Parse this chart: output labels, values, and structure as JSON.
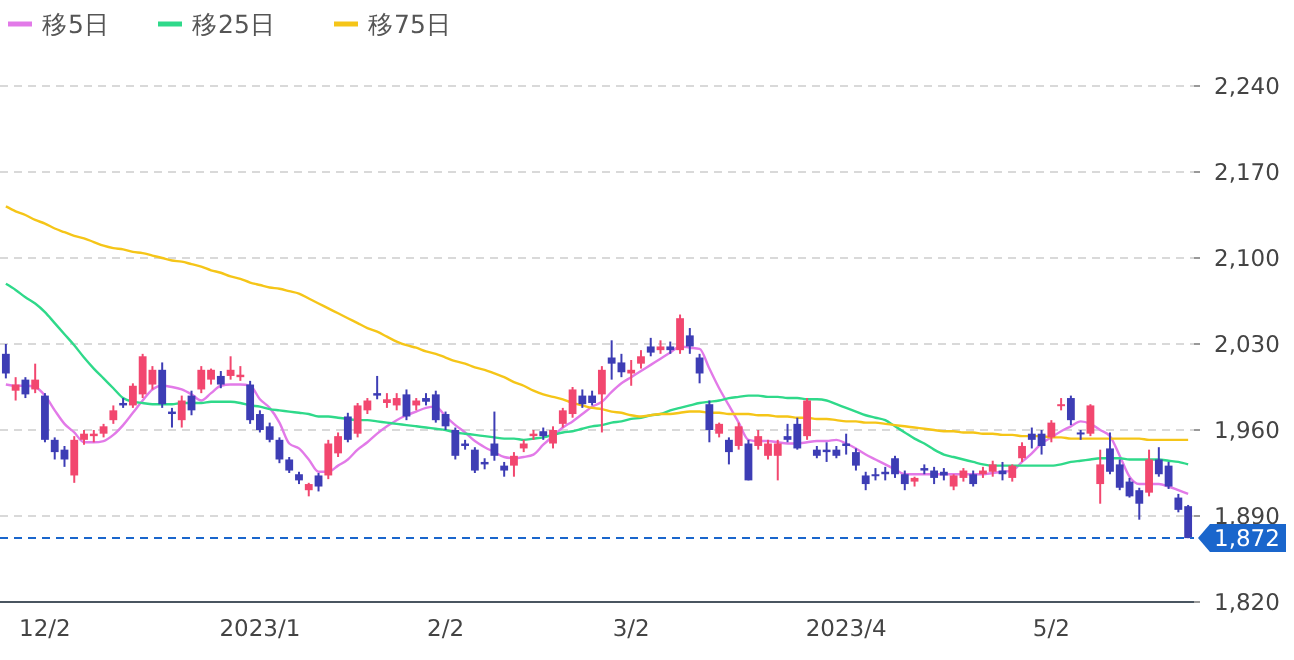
{
  "chart_data": {
    "type": "candlestick",
    "categories": [
      null,
      null,
      null,
      null,
      "12/2",
      null,
      null,
      null,
      null,
      null,
      null,
      null,
      null,
      null,
      null,
      null,
      null,
      null,
      null,
      null,
      null,
      null,
      null,
      null,
      null,
      null,
      "2023/1",
      null,
      null,
      null,
      null,
      null,
      null,
      null,
      null,
      null,
      null,
      null,
      null,
      null,
      null,
      null,
      null,
      null,
      null,
      "2/2",
      null,
      null,
      null,
      null,
      null,
      null,
      null,
      null,
      null,
      null,
      null,
      null,
      null,
      null,
      null,
      null,
      null,
      null,
      "3/2",
      null,
      null,
      null,
      null,
      null,
      null,
      null,
      null,
      null,
      null,
      null,
      null,
      null,
      null,
      null,
      null,
      null,
      null,
      null,
      null,
      null,
      "2023/4",
      null,
      null,
      null,
      null,
      null,
      null,
      null,
      null,
      null,
      null,
      null,
      null,
      null,
      null,
      null,
      null,
      null,
      null,
      null,
      null,
      "5/2",
      null,
      null,
      null,
      null,
      null,
      null,
      null,
      null,
      null,
      null,
      null,
      null,
      null,
      null
    ],
    "ohlc": [
      [
        2022,
        2030,
        2002,
        2006
      ],
      [
        1992,
        2003,
        1984,
        1997
      ],
      [
        2001,
        2003,
        1986,
        1989
      ],
      [
        1993,
        2014,
        1990,
        2001
      ],
      [
        1988,
        1990,
        1950,
        1952
      ],
      [
        1952,
        1954,
        1936,
        1942
      ],
      [
        1944,
        1947,
        1930,
        1936
      ],
      [
        1923,
        1955,
        1917,
        1952
      ],
      [
        1952,
        1960,
        1948,
        1957
      ],
      [
        1955,
        1960,
        1950,
        1957
      ],
      [
        1957,
        1965,
        1954,
        1963
      ],
      [
        1968,
        1980,
        1965,
        1976
      ],
      [
        1982,
        1986,
        1978,
        1980
      ],
      [
        1980,
        1998,
        1978,
        1996
      ],
      [
        1989,
        2022,
        1986,
        2020
      ],
      [
        1997,
        2012,
        1993,
        2009
      ],
      [
        2009,
        2015,
        1978,
        1981
      ],
      [
        1975,
        1978,
        1962,
        1973
      ],
      [
        1968,
        1988,
        1962,
        1984
      ],
      [
        1988,
        1992,
        1972,
        1976
      ],
      [
        1993,
        2012,
        1990,
        2009
      ],
      [
        2001,
        2010,
        1997,
        2009
      ],
      [
        2004,
        2008,
        1994,
        1997
      ],
      [
        2004,
        2020,
        2001,
        2009
      ],
      [
        2003,
        2012,
        2000,
        2005
      ],
      [
        1997,
        2000,
        1965,
        1968
      ],
      [
        1973,
        1976,
        1958,
        1960
      ],
      [
        1963,
        1966,
        1950,
        1952
      ],
      [
        1952,
        1954,
        1933,
        1936
      ],
      [
        1936,
        1938,
        1925,
        1927
      ],
      [
        1924,
        1926,
        1916,
        1919
      ],
      [
        1911,
        1917,
        1906,
        1916
      ],
      [
        1923,
        1925,
        1910,
        1914
      ],
      [
        1923,
        1952,
        1920,
        1949
      ],
      [
        1941,
        1958,
        1938,
        1955
      ],
      [
        1971,
        1974,
        1950,
        1952
      ],
      [
        1957,
        1982,
        1954,
        1980
      ],
      [
        1976,
        1986,
        1973,
        1984
      ],
      [
        1990,
        2004,
        1985,
        1988
      ],
      [
        1982,
        1990,
        1978,
        1985
      ],
      [
        1980,
        1990,
        1976,
        1986
      ],
      [
        1989,
        1993,
        1968,
        1971
      ],
      [
        1980,
        1986,
        1976,
        1984
      ],
      [
        1986,
        1990,
        1980,
        1983
      ],
      [
        1989,
        1992,
        1966,
        1968
      ],
      [
        1973,
        1975,
        1960,
        1963
      ],
      [
        1960,
        1962,
        1936,
        1939
      ],
      [
        1949,
        1952,
        1944,
        1947
      ],
      [
        1944,
        1946,
        1925,
        1927
      ],
      [
        1934,
        1937,
        1928,
        1932
      ],
      [
        1949,
        1975,
        1935,
        1939
      ],
      [
        1931,
        1934,
        1922,
        1927
      ],
      [
        1931,
        1942,
        1922,
        1939
      ],
      [
        1945,
        1952,
        1942,
        1949
      ],
      [
        1955,
        1960,
        1952,
        1957
      ],
      [
        1959,
        1962,
        1952,
        1955
      ],
      [
        1949,
        1963,
        1945,
        1960
      ],
      [
        1965,
        1978,
        1962,
        1976
      ],
      [
        1973,
        1995,
        1970,
        1993
      ],
      [
        1988,
        1993,
        1978,
        1981
      ],
      [
        1988,
        1992,
        1980,
        1982
      ],
      [
        1989,
        2012,
        1958,
        2009
      ],
      [
        2019,
        2033,
        2001,
        2014
      ],
      [
        2015,
        2022,
        2003,
        2007
      ],
      [
        2006,
        2017,
        1996,
        2009
      ],
      [
        2014,
        2025,
        2010,
        2020
      ],
      [
        2028,
        2035,
        2020,
        2023
      ],
      [
        2025,
        2033,
        2022,
        2028
      ],
      [
        2028,
        2032,
        2022,
        2025
      ],
      [
        2025,
        2054,
        2022,
        2051
      ],
      [
        2037,
        2043,
        2022,
        2028
      ],
      [
        2019,
        2022,
        1998,
        2006
      ],
      [
        1981,
        1984,
        1950,
        1960
      ],
      [
        1957,
        1966,
        1954,
        1965
      ],
      [
        1952,
        1954,
        1932,
        1942
      ],
      [
        1947,
        1966,
        1944,
        1963
      ],
      [
        1949,
        1952,
        1919,
        1919
      ],
      [
        1947,
        1960,
        1944,
        1955
      ],
      [
        1939,
        1952,
        1936,
        1949
      ],
      [
        1939,
        1952,
        1919,
        1949
      ],
      [
        1955,
        1965,
        1950,
        1952
      ],
      [
        1965,
        1970,
        1944,
        1945
      ],
      [
        1955,
        1986,
        1952,
        1984
      ],
      [
        1944,
        1947,
        1937,
        1939
      ],
      [
        1944,
        1950,
        1934,
        1942
      ],
      [
        1944,
        1947,
        1937,
        1939
      ],
      [
        1949,
        1957,
        1940,
        1947
      ],
      [
        1942,
        1945,
        1927,
        1931
      ],
      [
        1923,
        1926,
        1911,
        1916
      ],
      [
        1924,
        1929,
        1919,
        1923
      ],
      [
        1926,
        1930,
        1919,
        1924
      ],
      [
        1937,
        1939,
        1921,
        1924
      ],
      [
        1924,
        1927,
        1911,
        1916
      ],
      [
        1918,
        1922,
        1914,
        1921
      ],
      [
        1929,
        1932,
        1924,
        1927
      ],
      [
        1927,
        1930,
        1916,
        1921
      ],
      [
        1926,
        1929,
        1919,
        1923
      ],
      [
        1914,
        1924,
        1911,
        1923
      ],
      [
        1921,
        1929,
        1918,
        1927
      ],
      [
        1924,
        1927,
        1914,
        1916
      ],
      [
        1924,
        1930,
        1921,
        1927
      ],
      [
        1926,
        1935,
        1922,
        1932
      ],
      [
        1927,
        1934,
        1919,
        1924
      ],
      [
        1921,
        1932,
        1918,
        1931
      ],
      [
        1937,
        1950,
        1934,
        1947
      ],
      [
        1957,
        1962,
        1945,
        1952
      ],
      [
        1957,
        1960,
        1940,
        1947
      ],
      [
        1954,
        1968,
        1950,
        1966
      ],
      [
        1980,
        1986,
        1976,
        1981
      ],
      [
        1986,
        1988,
        1964,
        1968
      ],
      [
        1958,
        1960,
        1952,
        1957
      ],
      [
        1957,
        1981,
        1955,
        1980
      ],
      [
        1916,
        1944,
        1900,
        1932
      ],
      [
        1945,
        1958,
        1924,
        1926
      ],
      [
        1932,
        1936,
        1911,
        1913
      ],
      [
        1918,
        1921,
        1905,
        1906
      ],
      [
        1911,
        1913,
        1887,
        1900
      ],
      [
        1909,
        1944,
        1906,
        1936
      ],
      [
        1936,
        1946,
        1922,
        1924
      ],
      [
        1931,
        1934,
        1912,
        1914
      ],
      [
        1905,
        1908,
        1893,
        1895
      ],
      [
        1898,
        1899,
        1872,
        1872
      ]
    ],
    "series": [
      {
        "name": "移5日",
        "type": "line",
        "color": "#e27ae8",
        "values": [
          1997,
          1996,
          1996,
          1995,
          1988,
          1976,
          1965,
          1958,
          1950,
          1950,
          1951,
          1956,
          1964,
          1974,
          1984,
          1993,
          1996,
          1995,
          1993,
          1989,
          1984,
          1990,
          1996,
          1997,
          1997,
          1996,
          1985,
          1978,
          1966,
          1949,
          1945,
          1936,
          1926,
          1926,
          1931,
          1936,
          1944,
          1950,
          1957,
          1963,
          1968,
          1972,
          1975,
          1978,
          1979,
          1971,
          1964,
          1958,
          1951,
          1946,
          1942,
          1938,
          1937,
          1938,
          1940,
          1948,
          1955,
          1962,
          1967,
          1973,
          1979,
          1983,
          1991,
          1998,
          2003,
          2008,
          2013,
          2018,
          2023,
          2028,
          2027,
          2026,
          2010,
          1994,
          1980,
          1966,
          1952,
          1951,
          1951,
          1950,
          1949,
          1949,
          1950,
          1951,
          1951,
          1952,
          1949,
          1945,
          1940,
          1936,
          1932,
          1928,
          1924,
          1924,
          1924,
          1924,
          1924,
          1924,
          1924,
          1924,
          1924,
          1925,
          1926,
          1927,
          1934,
          1941,
          1949,
          1954,
          1959,
          1963,
          1967,
          1965,
          1960,
          1955,
          1939,
          1922,
          1916,
          1916,
          1916,
          1914,
          1911,
          1908
        ]
      },
      {
        "name": "移25日",
        "type": "line",
        "color": "#2fd98a",
        "values": [
          2079,
          2074,
          2068,
          2063,
          2056,
          2047,
          2038,
          2029,
          2019,
          2010,
          2002,
          1994,
          1986,
          1983,
          1982,
          1981,
          1981,
          1981,
          1982,
          1982,
          1982,
          1983,
          1983,
          1983,
          1982,
          1980,
          1979,
          1977,
          1976,
          1975,
          1974,
          1973,
          1971,
          1971,
          1970,
          1969,
          1968,
          1968,
          1967,
          1966,
          1965,
          1964,
          1963,
          1962,
          1961,
          1960,
          1958,
          1957,
          1956,
          1955,
          1954,
          1953,
          1953,
          1952,
          1953,
          1954,
          1956,
          1958,
          1959,
          1961,
          1963,
          1964,
          1966,
          1967,
          1969,
          1970,
          1972,
          1973,
          1976,
          1978,
          1980,
          1982,
          1983,
          1984,
          1986,
          1987,
          1988,
          1988,
          1987,
          1987,
          1986,
          1986,
          1985,
          1985,
          1984,
          1981,
          1978,
          1975,
          1972,
          1970,
          1968,
          1963,
          1958,
          1953,
          1949,
          1944,
          1940,
          1938,
          1936,
          1934,
          1932,
          1931,
          1931,
          1931,
          1931,
          1931,
          1931,
          1931,
          1932,
          1934,
          1935,
          1936,
          1937,
          1937,
          1937,
          1936,
          1936,
          1936,
          1936,
          1935,
          1934,
          1932
        ]
      },
      {
        "name": "移75日",
        "type": "line",
        "color": "#f5c518",
        "values": [
          2142,
          2138,
          2135,
          2131,
          2128,
          2124,
          2121,
          2118,
          2116,
          2113,
          2110,
          2108,
          2107,
          2105,
          2104,
          2102,
          2100,
          2098,
          2097,
          2095,
          2093,
          2090,
          2088,
          2085,
          2083,
          2080,
          2078,
          2076,
          2075,
          2073,
          2071,
          2067,
          2063,
          2059,
          2055,
          2051,
          2047,
          2043,
          2040,
          2036,
          2032,
          2029,
          2027,
          2024,
          2022,
          2019,
          2016,
          2014,
          2011,
          2009,
          2006,
          2003,
          1999,
          1996,
          1992,
          1989,
          1987,
          1985,
          1982,
          1980,
          1978,
          1977,
          1975,
          1974,
          1972,
          1971,
          1972,
          1973,
          1973,
          1974,
          1975,
          1975,
          1974,
          1974,
          1973,
          1973,
          1973,
          1972,
          1972,
          1971,
          1971,
          1970,
          1970,
          1969,
          1969,
          1968,
          1967,
          1967,
          1966,
          1966,
          1965,
          1964,
          1963,
          1962,
          1961,
          1960,
          1959,
          1959,
          1958,
          1958,
          1957,
          1957,
          1956,
          1956,
          1955,
          1955,
          1955,
          1954,
          1954,
          1953,
          1953,
          1953,
          1953,
          1953,
          1953,
          1953,
          1953,
          1952,
          1952,
          1952,
          1952,
          1952
        ]
      }
    ],
    "ylim": [
      1820,
      2240
    ],
    "yticks": [
      {
        "value": 1820,
        "label": "1,820"
      },
      {
        "value": 1890,
        "label": "1,890"
      },
      {
        "value": 1960,
        "label": "1,960"
      },
      {
        "value": 2030,
        "label": "2,030"
      },
      {
        "value": 2100,
        "label": "2,100"
      },
      {
        "value": 2170,
        "label": "2,170"
      },
      {
        "value": 2240,
        "label": "2,240"
      }
    ],
    "ref_lines": [
      {
        "axis": "y",
        "value": 1872,
        "label": "1,872",
        "color": "#1a66cc",
        "line_style": "dashed"
      }
    ],
    "grid": "y",
    "legend": "top left"
  }
}
